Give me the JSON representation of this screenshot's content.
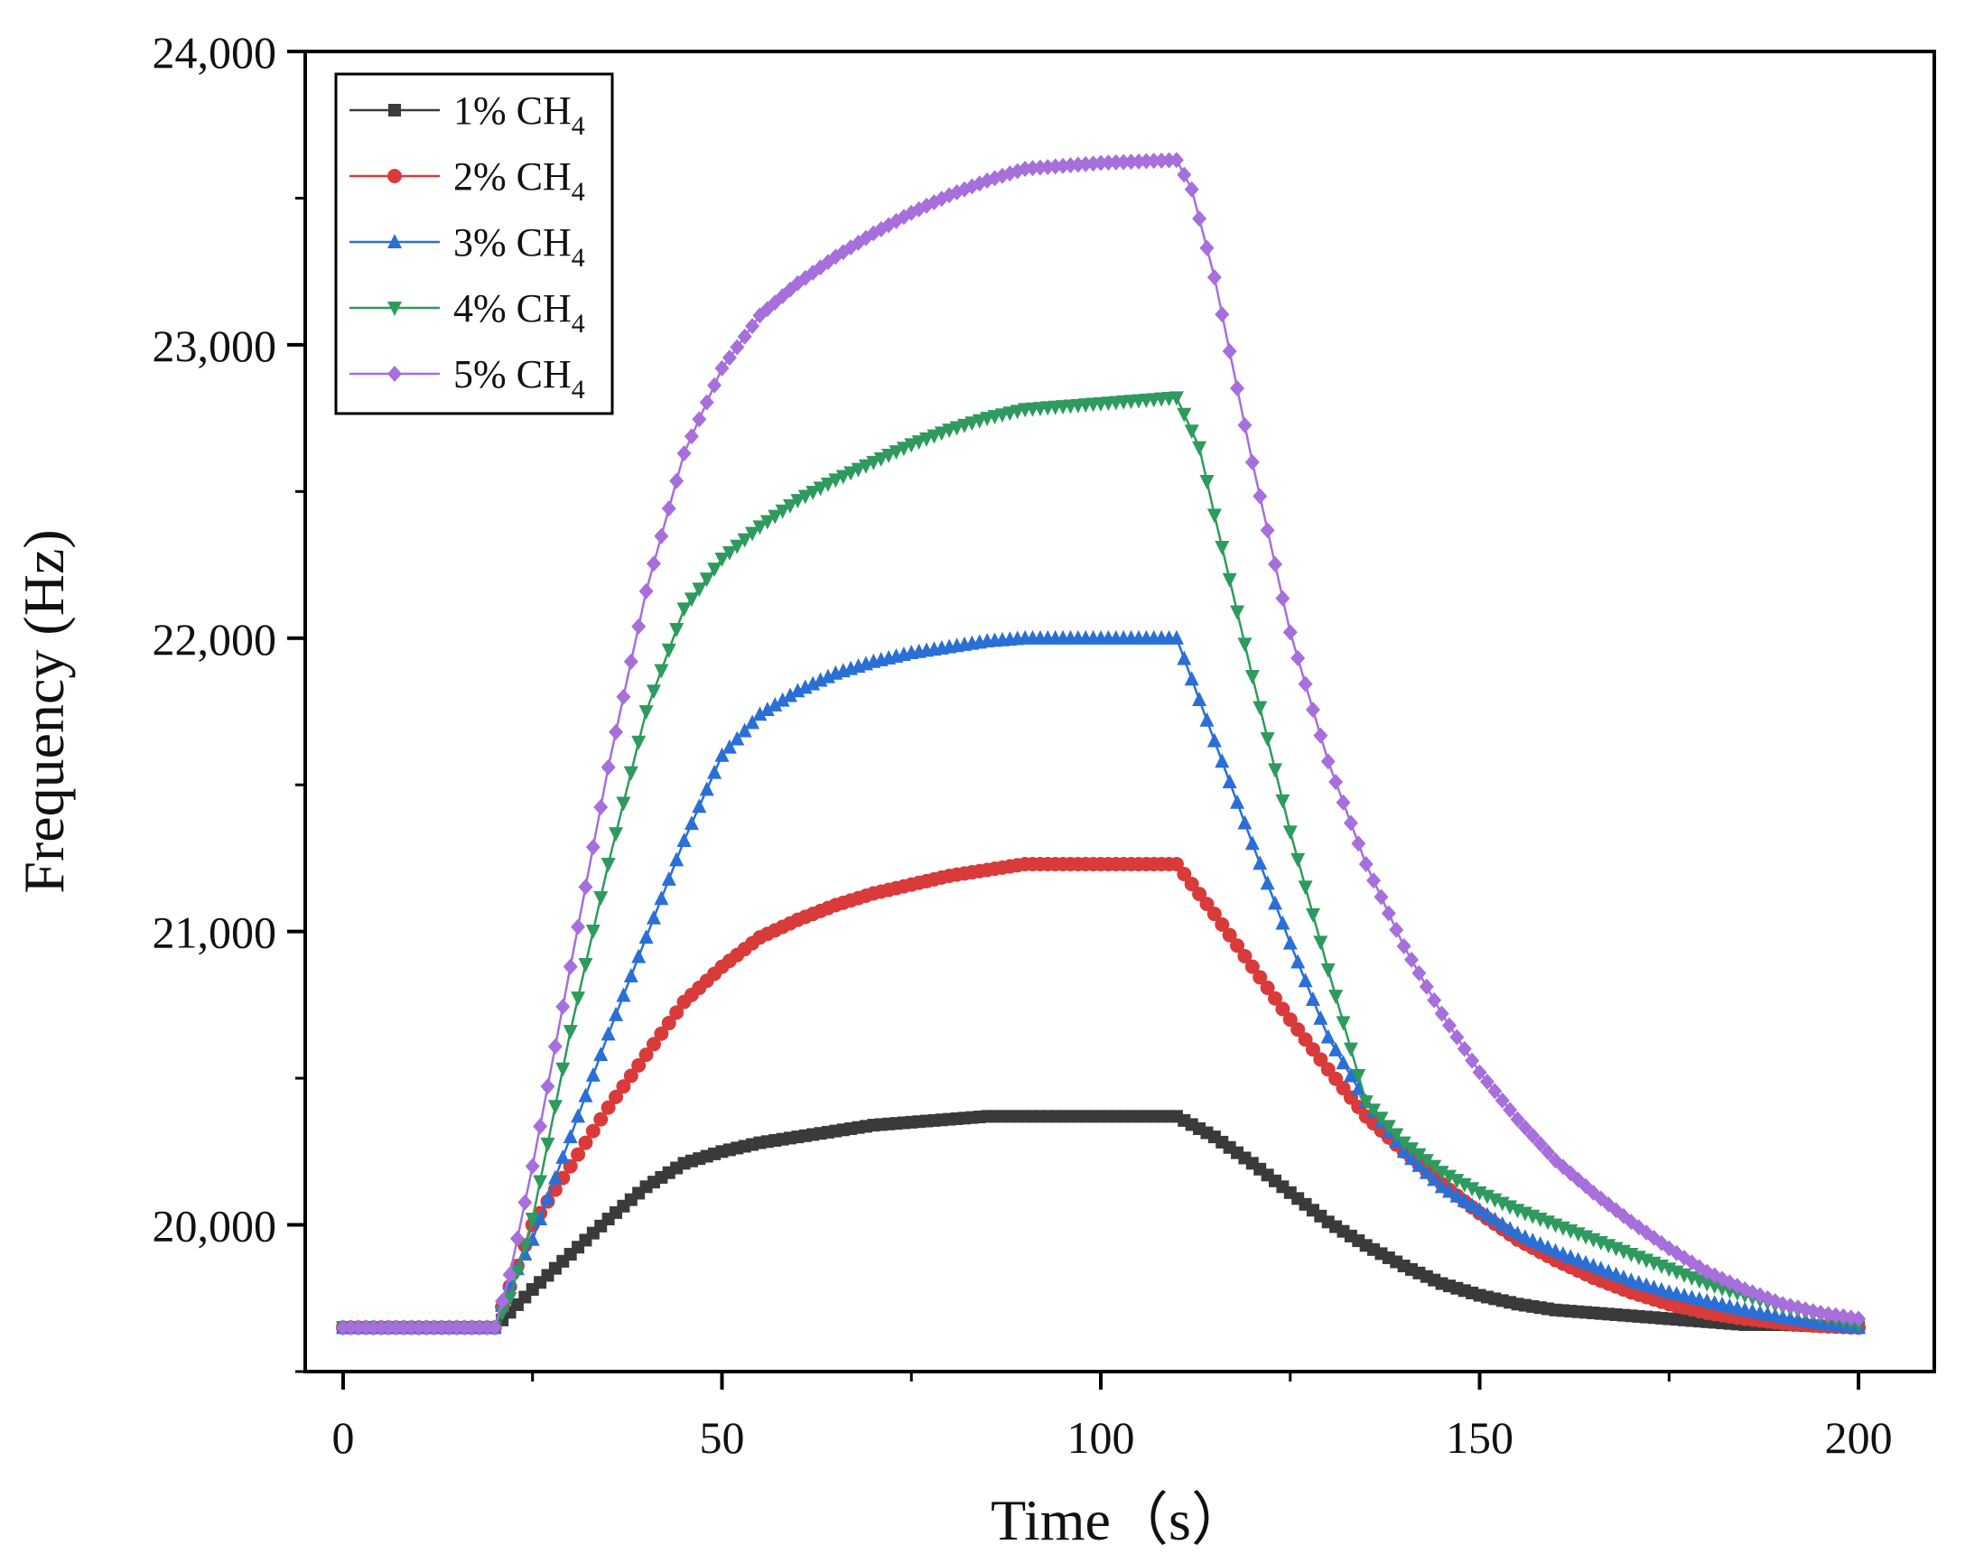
{
  "chart_data": {
    "type": "line",
    "xlabel": "Time（s）",
    "ylabel": "Frequency (Hz)",
    "xlim": [
      -5,
      210
    ],
    "ylim": [
      19500,
      24000
    ],
    "xticks": [
      {
        "value": 0,
        "label": "0"
      },
      {
        "value": 50,
        "label": "50"
      },
      {
        "value": 100,
        "label": "100"
      },
      {
        "value": 150,
        "label": "150"
      },
      {
        "value": 200,
        "label": "200"
      }
    ],
    "yticks": [
      {
        "value": 20000,
        "label": "20,000"
      },
      {
        "value": 21000,
        "label": "21,000"
      },
      {
        "value": 22000,
        "label": "22,000"
      },
      {
        "value": 23000,
        "label": "23,000"
      },
      {
        "value": 24000,
        "label": "24,000"
      }
    ],
    "grid": false,
    "legend_position": "top-left",
    "series": [
      {
        "name": "1% CH4",
        "legend_main": "1% CH",
        "legend_sub": "4",
        "color": "#3a3a3a",
        "marker": "square",
        "points": [
          [
            0,
            19650
          ],
          [
            10,
            19650
          ],
          [
            20,
            19650
          ],
          [
            25,
            19780
          ],
          [
            30,
            19900
          ],
          [
            35,
            20020
          ],
          [
            40,
            20130
          ],
          [
            45,
            20210
          ],
          [
            50,
            20250
          ],
          [
            55,
            20280
          ],
          [
            60,
            20300
          ],
          [
            65,
            20320
          ],
          [
            70,
            20340
          ],
          [
            75,
            20350
          ],
          [
            80,
            20360
          ],
          [
            85,
            20370
          ],
          [
            90,
            20370
          ],
          [
            95,
            20370
          ],
          [
            100,
            20370
          ],
          [
            105,
            20370
          ],
          [
            110,
            20370
          ],
          [
            115,
            20300
          ],
          [
            120,
            20210
          ],
          [
            125,
            20110
          ],
          [
            130,
            20010
          ],
          [
            135,
            19930
          ],
          [
            140,
            19860
          ],
          [
            145,
            19800
          ],
          [
            150,
            19760
          ],
          [
            155,
            19730
          ],
          [
            160,
            19710
          ],
          [
            165,
            19700
          ],
          [
            170,
            19690
          ],
          [
            175,
            19680
          ],
          [
            180,
            19670
          ],
          [
            185,
            19660
          ],
          [
            190,
            19660
          ],
          [
            195,
            19655
          ],
          [
            200,
            19650
          ]
        ]
      },
      {
        "name": "2% CH4",
        "legend_main": "2% CH",
        "legend_sub": "4",
        "color": "#d93a3a",
        "marker": "circle",
        "points": [
          [
            0,
            19650
          ],
          [
            10,
            19650
          ],
          [
            20,
            19650
          ],
          [
            25,
            20000
          ],
          [
            30,
            20200
          ],
          [
            35,
            20400
          ],
          [
            40,
            20580
          ],
          [
            45,
            20760
          ],
          [
            50,
            20880
          ],
          [
            55,
            20980
          ],
          [
            60,
            21040
          ],
          [
            65,
            21090
          ],
          [
            70,
            21130
          ],
          [
            75,
            21160
          ],
          [
            80,
            21190
          ],
          [
            85,
            21210
          ],
          [
            90,
            21230
          ],
          [
            95,
            21230
          ],
          [
            100,
            21230
          ],
          [
            105,
            21230
          ],
          [
            110,
            21230
          ],
          [
            115,
            21060
          ],
          [
            120,
            20880
          ],
          [
            125,
            20700
          ],
          [
            130,
            20530
          ],
          [
            135,
            20370
          ],
          [
            140,
            20250
          ],
          [
            145,
            20140
          ],
          [
            150,
            20040
          ],
          [
            155,
            19950
          ],
          [
            160,
            19880
          ],
          [
            165,
            19820
          ],
          [
            170,
            19770
          ],
          [
            175,
            19730
          ],
          [
            180,
            19700
          ],
          [
            185,
            19680
          ],
          [
            190,
            19665
          ],
          [
            195,
            19655
          ],
          [
            200,
            19650
          ]
        ]
      },
      {
        "name": "3% CH4",
        "legend_main": "3% CH",
        "legend_sub": "4",
        "color": "#2a6fd6",
        "marker": "triangle-up",
        "points": [
          [
            0,
            19650
          ],
          [
            10,
            19650
          ],
          [
            20,
            19650
          ],
          [
            22,
            19800
          ],
          [
            25,
            19950
          ],
          [
            30,
            20300
          ],
          [
            35,
            20650
          ],
          [
            40,
            20980
          ],
          [
            45,
            21310
          ],
          [
            50,
            21600
          ],
          [
            55,
            21740
          ],
          [
            60,
            21820
          ],
          [
            65,
            21880
          ],
          [
            70,
            21920
          ],
          [
            75,
            21950
          ],
          [
            80,
            21970
          ],
          [
            85,
            21990
          ],
          [
            90,
            22000
          ],
          [
            95,
            22000
          ],
          [
            100,
            22000
          ],
          [
            105,
            22000
          ],
          [
            110,
            22000
          ],
          [
            115,
            21650
          ],
          [
            120,
            21300
          ],
          [
            125,
            20960
          ],
          [
            130,
            20640
          ],
          [
            135,
            20420
          ],
          [
            140,
            20250
          ],
          [
            145,
            20130
          ],
          [
            150,
            20050
          ],
          [
            155,
            19970
          ],
          [
            160,
            19910
          ],
          [
            165,
            19860
          ],
          [
            170,
            19810
          ],
          [
            175,
            19770
          ],
          [
            180,
            19740
          ],
          [
            185,
            19710
          ],
          [
            190,
            19685
          ],
          [
            195,
            19665
          ],
          [
            200,
            19650
          ]
        ]
      },
      {
        "name": "4% CH4",
        "legend_main": "4% CH",
        "legend_sub": "4",
        "color": "#2e9a5e",
        "marker": "triangle-down",
        "points": [
          [
            0,
            19650
          ],
          [
            10,
            19650
          ],
          [
            20,
            19650
          ],
          [
            22,
            19750
          ],
          [
            25,
            20020
          ],
          [
            30,
            20660
          ],
          [
            35,
            21230
          ],
          [
            40,
            21750
          ],
          [
            45,
            22100
          ],
          [
            50,
            22270
          ],
          [
            55,
            22380
          ],
          [
            60,
            22470
          ],
          [
            65,
            22540
          ],
          [
            70,
            22600
          ],
          [
            75,
            22660
          ],
          [
            80,
            22710
          ],
          [
            85,
            22750
          ],
          [
            90,
            22780
          ],
          [
            95,
            22790
          ],
          [
            100,
            22800
          ],
          [
            105,
            22810
          ],
          [
            110,
            22820
          ],
          [
            113,
            22650
          ],
          [
            115,
            22420
          ],
          [
            120,
            21870
          ],
          [
            125,
            21340
          ],
          [
            130,
            20870
          ],
          [
            135,
            20420
          ],
          [
            140,
            20280
          ],
          [
            145,
            20180
          ],
          [
            150,
            20110
          ],
          [
            155,
            20050
          ],
          [
            160,
            20000
          ],
          [
            165,
            19950
          ],
          [
            170,
            19900
          ],
          [
            175,
            19850
          ],
          [
            180,
            19800
          ],
          [
            185,
            19760
          ],
          [
            190,
            19720
          ],
          [
            195,
            19690
          ],
          [
            200,
            19660
          ]
        ]
      },
      {
        "name": "5% CH4",
        "legend_main": "5% CH",
        "legend_sub": "4",
        "color": "#a66fdb",
        "marker": "diamond",
        "points": [
          [
            0,
            19650
          ],
          [
            10,
            19650
          ],
          [
            20,
            19650
          ],
          [
            22,
            19830
          ],
          [
            25,
            20200
          ],
          [
            30,
            20880
          ],
          [
            35,
            21560
          ],
          [
            40,
            22160
          ],
          [
            45,
            22630
          ],
          [
            50,
            22920
          ],
          [
            55,
            23100
          ],
          [
            60,
            23210
          ],
          [
            65,
            23300
          ],
          [
            70,
            23380
          ],
          [
            75,
            23450
          ],
          [
            80,
            23510
          ],
          [
            85,
            23560
          ],
          [
            90,
            23600
          ],
          [
            95,
            23610
          ],
          [
            100,
            23620
          ],
          [
            105,
            23625
          ],
          [
            110,
            23630
          ],
          [
            112,
            23530
          ],
          [
            115,
            23230
          ],
          [
            120,
            22600
          ],
          [
            125,
            22020
          ],
          [
            130,
            21580
          ],
          [
            135,
            21230
          ],
          [
            140,
            20950
          ],
          [
            145,
            20720
          ],
          [
            150,
            20520
          ],
          [
            155,
            20360
          ],
          [
            160,
            20220
          ],
          [
            165,
            20110
          ],
          [
            170,
            20010
          ],
          [
            175,
            19920
          ],
          [
            180,
            19840
          ],
          [
            185,
            19780
          ],
          [
            190,
            19730
          ],
          [
            195,
            19700
          ],
          [
            200,
            19680
          ]
        ]
      }
    ]
  }
}
